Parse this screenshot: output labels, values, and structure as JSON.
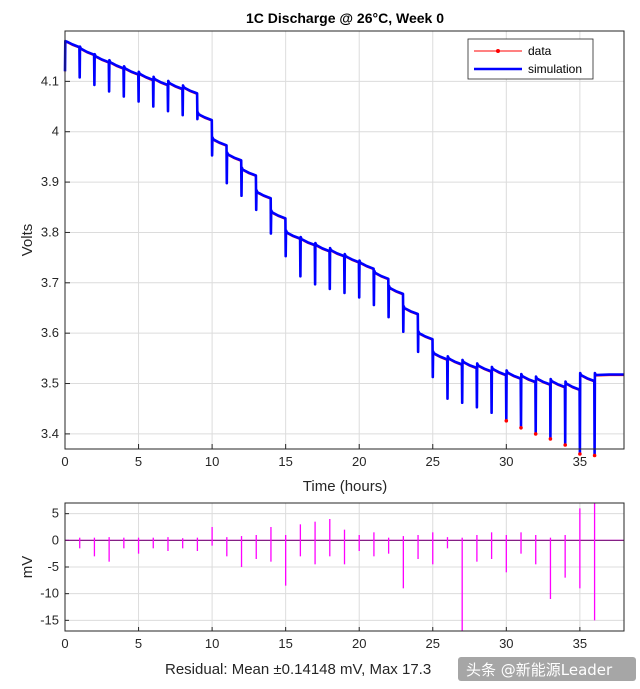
{
  "chart_data": [
    {
      "type": "line",
      "title": "1C Discharge @ 26°C, Week 0",
      "xlabel": "Time (hours)",
      "ylabel": "Volts",
      "xlim": [
        0,
        38
      ],
      "ylim": [
        3.37,
        4.2
      ],
      "xticks": [
        0,
        5,
        10,
        15,
        20,
        25,
        30,
        35
      ],
      "yticks": [
        3.4,
        3.5,
        3.6,
        3.7,
        3.8,
        3.9,
        4.0,
        4.1
      ],
      "ytick_labels": [
        "3.4",
        "3.5",
        "3.6",
        "3.7",
        "3.8",
        "3.9",
        "4",
        "4.1"
      ],
      "grid": true,
      "legend": {
        "position": "top-right",
        "entries": [
          "data",
          "simulation"
        ]
      },
      "series": [
        {
          "name": "data",
          "color": "#ff0000",
          "marker": "dot"
        },
        {
          "name": "simulation",
          "color": "#0000ff"
        }
      ],
      "pulse_period_hours": 1,
      "rest_voltages": [
        4.18,
        4.165,
        4.15,
        4.138,
        4.126,
        4.115,
        4.105,
        4.097,
        4.088,
        4.035,
        3.985,
        3.955,
        3.925,
        3.88,
        3.84,
        3.8,
        3.787,
        3.775,
        3.765,
        3.753,
        3.74,
        3.72,
        3.69,
        3.65,
        3.6,
        3.56,
        3.55,
        3.543,
        3.536,
        3.529,
        3.522,
        3.515,
        3.51,
        3.505,
        3.5,
        3.517,
        3.517,
        3.518
      ],
      "pulse_drops_volts": [
        0.06,
        0.06,
        0.058,
        0.056,
        0.054,
        0.053,
        0.052,
        0.052,
        0.051,
        0.07,
        0.075,
        0.07,
        0.068,
        0.07,
        0.075,
        0.075,
        0.078,
        0.075,
        0.073,
        0.07,
        0.072,
        0.076,
        0.075,
        0.075,
        0.075,
        0.078,
        0.076,
        0.078,
        0.082,
        0.088,
        0.095,
        0.1,
        0.105,
        0.112,
        0.125,
        0.145
      ]
    },
    {
      "type": "line",
      "xlabel": "Residual: Mean ±0.14148 mV, Max 17.3",
      "ylabel": "mV",
      "xlim": [
        0,
        38
      ],
      "ylim": [
        -17,
        7
      ],
      "xticks": [
        0,
        5,
        10,
        15,
        20,
        25,
        30,
        35
      ],
      "yticks": [
        -15,
        -10,
        -5,
        0,
        5
      ],
      "grid": true,
      "series": [
        {
          "name": "residual",
          "color": "#ff00ff"
        }
      ],
      "spikes_mV": [
        [
          1,
          -1.5,
          0.5
        ],
        [
          2,
          -3.0,
          0.5
        ],
        [
          3,
          -4.0,
          0.6
        ],
        [
          4,
          -1.5,
          0.5
        ],
        [
          5,
          -2.5,
          0.5
        ],
        [
          6,
          -1.5,
          0.5
        ],
        [
          7,
          -2.0,
          0.6
        ],
        [
          8,
          -1.5,
          0.4
        ],
        [
          9,
          -2.0,
          0.5
        ],
        [
          10,
          -1.0,
          2.5
        ],
        [
          11,
          -3.0,
          0.6
        ],
        [
          12,
          -5.0,
          0.8
        ],
        [
          13,
          -3.5,
          1.0
        ],
        [
          14,
          -4.0,
          2.5
        ],
        [
          15,
          -8.5,
          1.0
        ],
        [
          16,
          -3.0,
          3.0
        ],
        [
          17,
          -4.5,
          3.5
        ],
        [
          18,
          -3.0,
          4.0
        ],
        [
          19,
          -4.5,
          2.0
        ],
        [
          20,
          -2.0,
          1.0
        ],
        [
          21,
          -3.0,
          1.5
        ],
        [
          22,
          -2.5,
          0.5
        ],
        [
          23,
          -9.0,
          0.8
        ],
        [
          24,
          -3.5,
          1.0
        ],
        [
          25,
          -4.5,
          1.5
        ],
        [
          26,
          -1.5,
          0.6
        ],
        [
          27,
          -17.0,
          0.5
        ],
        [
          28,
          -4.0,
          1.0
        ],
        [
          29,
          -3.5,
          1.5
        ],
        [
          30,
          -6.0,
          1.0
        ],
        [
          31,
          -2.5,
          1.5
        ],
        [
          32,
          -4.5,
          1.0
        ],
        [
          33,
          -11.0,
          0.5
        ],
        [
          34,
          -7.0,
          1.0
        ],
        [
          35,
          -9.0,
          6.0
        ],
        [
          36,
          -15.0,
          7.0
        ]
      ]
    }
  ],
  "watermark": "头条 @新能源Leader"
}
